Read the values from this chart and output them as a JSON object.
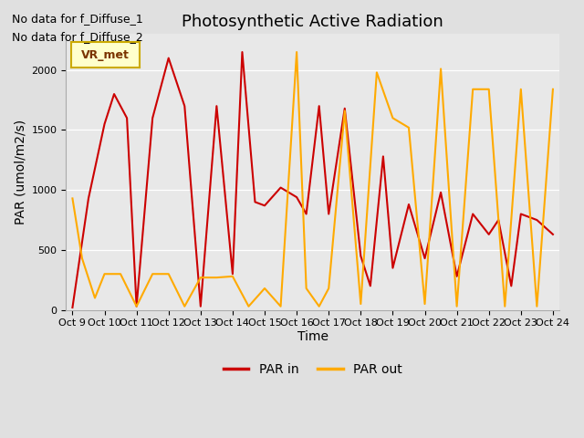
{
  "title": "Photosynthetic Active Radiation",
  "ylabel": "PAR (umol/m2/s)",
  "xlabel": "Time",
  "ylim": [
    0,
    2300
  ],
  "background_color": "#e0e0e0",
  "plot_bg_color": "#e8e8e8",
  "annotations": [
    "No data for f_Diffuse_1",
    "No data for f_Diffuse_2"
  ],
  "legend_label": "VR_met",
  "x_tick_positions": [
    0,
    1,
    2,
    3,
    4,
    5,
    6,
    7,
    8,
    9,
    10,
    11,
    12,
    13,
    14,
    15
  ],
  "x_labels": [
    "Oct 9",
    "Oct 10",
    "Oct 11",
    "Oct 12",
    "Oct 13",
    "Oct 14",
    "Oct 15",
    "Oct 16",
    "Oct 17",
    "Oct 18",
    "Oct 19",
    "Oct 20",
    "Oct 21",
    "Oct 22",
    "Oct 23",
    "Oct 24"
  ],
  "par_in_x": [
    0.0,
    0.5,
    1.0,
    1.3,
    1.7,
    2.0,
    2.5,
    3.0,
    3.5,
    4.0,
    4.5,
    5.0,
    5.3,
    5.7,
    6.0,
    6.5,
    7.0,
    7.3,
    7.7,
    8.0,
    8.5,
    9.0,
    9.3,
    9.7,
    10.0,
    10.5,
    11.0,
    11.5,
    12.0,
    12.5,
    13.0,
    13.3,
    13.7,
    14.0,
    14.5,
    15.0
  ],
  "par_in_y": [
    20,
    930,
    1550,
    1800,
    1600,
    30,
    1600,
    2100,
    1700,
    30,
    1700,
    300,
    2150,
    900,
    870,
    1020,
    940,
    800,
    1700,
    800,
    1680,
    450,
    200,
    1280,
    350,
    880,
    430,
    980,
    280,
    800,
    630,
    750,
    200,
    800,
    750,
    630
  ],
  "par_out_x": [
    0.0,
    0.3,
    0.7,
    1.0,
    1.5,
    2.0,
    2.5,
    3.0,
    3.5,
    4.0,
    4.5,
    5.0,
    5.5,
    6.0,
    6.5,
    7.0,
    7.3,
    7.7,
    8.0,
    8.5,
    9.0,
    9.5,
    10.0,
    10.5,
    11.0,
    11.5,
    12.0,
    12.5,
    13.0,
    13.5,
    14.0,
    14.5,
    15.0
  ],
  "par_out_y": [
    930,
    430,
    100,
    300,
    300,
    30,
    300,
    300,
    30,
    270,
    270,
    280,
    30,
    180,
    30,
    2150,
    180,
    30,
    180,
    1660,
    50,
    1980,
    1600,
    1520,
    50,
    2010,
    30,
    1840,
    1840,
    30,
    1840,
    30,
    1840
  ],
  "par_in_color": "#cc0000",
  "par_out_color": "#ffaa00",
  "line_width": 1.5,
  "title_fontsize": 13,
  "axis_fontsize": 10,
  "tick_fontsize": 8,
  "legend_fontsize": 10,
  "vr_met_fontsize": 9,
  "annotation_fontsize": 9
}
